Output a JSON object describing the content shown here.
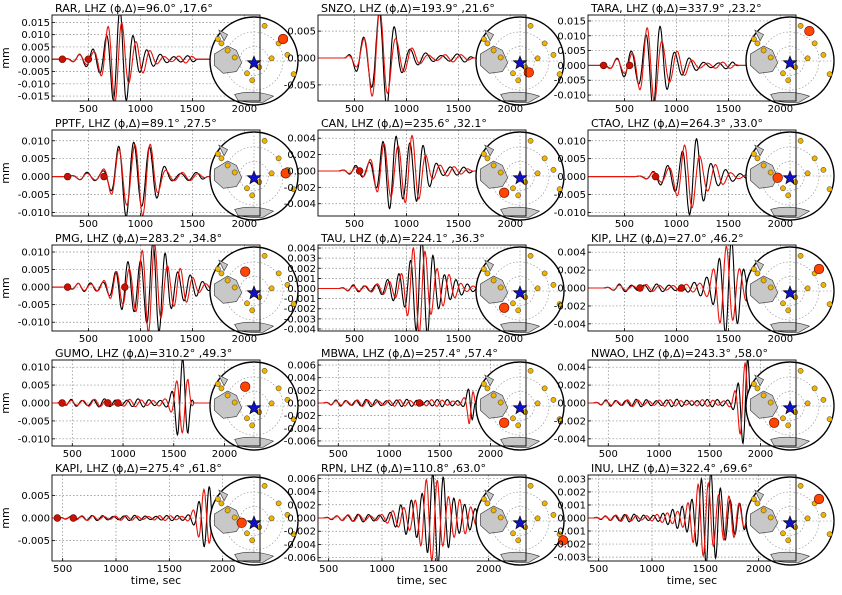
{
  "figure": {
    "ylabel": "mm",
    "xlabel": "time, sec"
  },
  "colors": {
    "observed": "#000000",
    "synthetic": "#e8140c",
    "map_land": "#c8c8c8",
    "station_dot": "#f0b400",
    "highlight_station": "#ff4500",
    "epicenter_star": "#1010c8",
    "marker": "#cc1100"
  },
  "chart_data": [
    {
      "type": "line",
      "title": "RAR, LHZ (ϕ,Δ)=96.0° ,17.6°",
      "xlim": [
        150,
        2150
      ],
      "ylim": [
        -0.017,
        0.018
      ],
      "xticks": [
        "500",
        "1000",
        "1500",
        "2000"
      ],
      "xtick_values": [
        500,
        1000,
        1500,
        2000
      ],
      "yticks": [
        "0.015",
        "0.010",
        "0.005",
        "0.000",
        "-0.005",
        "-0.010",
        "-0.015"
      ],
      "ytick_values": [
        0.015,
        0.01,
        0.005,
        0.0,
        -0.005,
        -0.01,
        -0.015
      ],
      "markers_x": [
        250,
        500
      ],
      "window": [
        250,
        1550
      ],
      "peak": 0.0165,
      "center": 800,
      "width": 200,
      "period": 130,
      "mismatch": 0.6,
      "map_highlight": "upper-right"
    },
    {
      "type": "line",
      "title": "SNZO, LHZ (ϕ,Δ)=193.9° ,21.6°",
      "xlim": [
        150,
        2150
      ],
      "ylim": [
        -0.008,
        0.008
      ],
      "xticks": [
        "500",
        "1000",
        "1500",
        "2000"
      ],
      "xtick_values": [
        500,
        1000,
        1500,
        2000
      ],
      "yticks": [
        "0.005",
        "0.000",
        "-0.005"
      ],
      "ytick_values": [
        0.005,
        0.0,
        -0.005
      ],
      "markers_x": [],
      "window": [
        400,
        1650
      ],
      "peak": 0.0078,
      "center": 750,
      "width": 220,
      "period": 150,
      "mismatch": 0.5,
      "map_highlight": "lower-center"
    },
    {
      "type": "line",
      "title": "TARA, LHZ (ϕ,Δ)=337.9° ,23.2°",
      "xlim": [
        150,
        2150
      ],
      "ylim": [
        -0.012,
        0.017
      ],
      "xticks": [
        "500",
        "1000",
        "1500",
        "2000"
      ],
      "xtick_values": [
        500,
        1000,
        1500,
        2000
      ],
      "yticks": [
        "0.015",
        "0.010",
        "0.005",
        "0.000",
        "-0.005",
        "-0.010"
      ],
      "ytick_values": [
        0.015,
        0.01,
        0.005,
        0.0,
        -0.005,
        -0.01
      ],
      "markers_x": [
        300,
        550
      ],
      "window": [
        250,
        1600
      ],
      "peak": 0.0118,
      "center": 780,
      "width": 230,
      "period": 140,
      "mismatch": 0.5,
      "map_highlight": "upper-center"
    },
    {
      "type": "line",
      "title": "PPTF, LHZ (ϕ,Δ)=89.1° ,27.5°",
      "xlim": [
        150,
        2150
      ],
      "ylim": [
        -0.011,
        0.013
      ],
      "xticks": [
        "500",
        "1000",
        "1500",
        "2000"
      ],
      "xtick_values": [
        500,
        1000,
        1500,
        2000
      ],
      "yticks": [
        "0.010",
        "0.005",
        "0.000",
        "-0.005",
        "-0.010"
      ],
      "ytick_values": [
        0.01,
        0.005,
        0.0,
        -0.005,
        -0.01
      ],
      "markers_x": [
        300,
        650
      ],
      "window": [
        300,
        1650
      ],
      "peak": 0.0115,
      "center": 950,
      "width": 210,
      "period": 150,
      "mismatch": 0.2,
      "map_highlight": "right"
    },
    {
      "type": "line",
      "title": "CAN, LHZ (ϕ,Δ)=235.6° ,32.1°",
      "xlim": [
        150,
        2150
      ],
      "ylim": [
        -0.0055,
        0.005
      ],
      "xticks": [
        "500",
        "1000",
        "1500",
        "2000"
      ],
      "xtick_values": [
        500,
        1000,
        1500,
        2000
      ],
      "yticks": [
        "0.004",
        "0.002",
        "0.000",
        "-0.002",
        "-0.004"
      ],
      "ytick_values": [
        0.004,
        0.002,
        0.0,
        -0.002,
        -0.004
      ],
      "markers_x": [
        550
      ],
      "window": [
        350,
        1650
      ],
      "peak": 0.0045,
      "center": 950,
      "width": 260,
      "period": 130,
      "mismatch": 0.5,
      "map_highlight": "lower-left"
    },
    {
      "type": "line",
      "title": "CTAO, LHZ (ϕ,Δ)=264.3° ,33.0°",
      "xlim": [
        150,
        2150
      ],
      "ylim": [
        -0.011,
        0.013
      ],
      "xticks": [
        "500",
        "1000",
        "1500",
        "2000"
      ],
      "xtick_values": [
        500,
        1000,
        1500,
        2000
      ],
      "yticks": [
        "0.010",
        "0.005",
        "0.000",
        "-0.005",
        "-0.010"
      ],
      "ytick_values": [
        0.01,
        0.005,
        0.0,
        -0.005,
        -0.01
      ],
      "markers_x": [
        800
      ],
      "window": [
        600,
        1850
      ],
      "peak": 0.009,
      "center": 1150,
      "width": 220,
      "period": 140,
      "mismatch": 0.9,
      "map_highlight": "left"
    },
    {
      "type": "line",
      "title": "PMG, LHZ (ϕ,Δ)=283.2° ,34.8°",
      "xlim": [
        150,
        2150
      ],
      "ylim": [
        -0.0125,
        0.012
      ],
      "xticks": [
        "500",
        "1000",
        "1500",
        "2000"
      ],
      "xtick_values": [
        500,
        1000,
        1500,
        2000
      ],
      "yticks": [
        "0.010",
        "0.005",
        "0.000",
        "-0.005",
        "-0.010"
      ],
      "ytick_values": [
        0.01,
        0.005,
        0.0,
        -0.005,
        -0.01
      ],
      "markers_x": [
        300,
        850
      ],
      "window": [
        250,
        1850
      ],
      "peak": 0.011,
      "center": 1100,
      "width": 300,
      "period": 120,
      "mismatch": 0.3,
      "map_highlight": "upper-left"
    },
    {
      "type": "line",
      "title": "TAU, LHZ (ϕ,Δ)=224.1° ,36.3°",
      "xlim": [
        150,
        2150
      ],
      "ylim": [
        -0.0042,
        0.0043
      ],
      "xticks": [
        "500",
        "1000",
        "1500",
        "2000"
      ],
      "xtick_values": [
        500,
        1000,
        1500,
        2000
      ],
      "yticks": [
        "0.004",
        "0.003",
        "0.002",
        "0.001",
        "0.000",
        "-0.001",
        "-0.002",
        "-0.003",
        "-0.004"
      ],
      "ytick_values": [
        0.004,
        0.003,
        0.002,
        0.001,
        0.0,
        -0.001,
        -0.002,
        -0.003,
        -0.004
      ],
      "markers_x": [],
      "window": [
        350,
        1800
      ],
      "peak": 0.0041,
      "center": 1150,
      "width": 220,
      "period": 110,
      "mismatch": 0.6,
      "map_highlight": "lower-left"
    },
    {
      "type": "line",
      "title": "KIP, LHZ (ϕ,Δ)=27.0° ,46.2°",
      "xlim": [
        150,
        2150
      ],
      "ylim": [
        -0.0048,
        0.0048
      ],
      "xticks": [
        "500",
        "1000",
        "1500",
        "2000"
      ],
      "xtick_values": [
        500,
        1000,
        1500,
        2000
      ],
      "yticks": [
        "0.004",
        "0.002",
        "0.000",
        "-0.002",
        "-0.004"
      ],
      "ytick_values": [
        0.004,
        0.002,
        0.0,
        -0.002,
        -0.004
      ],
      "markers_x": [
        650,
        1050
      ],
      "window": [
        300,
        1850
      ],
      "peak": 0.0045,
      "center": 1500,
      "width": 180,
      "period": 120,
      "mismatch": 0.9,
      "map_highlight": "upper-right"
    },
    {
      "type": "line",
      "title": "GUMO, LHZ (ϕ,Δ)=310.2° ,49.3°",
      "xlim": [
        300,
        2350
      ],
      "ylim": [
        -0.012,
        0.012
      ],
      "xticks": [
        "500",
        "1000",
        "1500",
        "2000"
      ],
      "xtick_values": [
        500,
        1000,
        1500,
        2000
      ],
      "yticks": [
        "0.010",
        "0.005",
        "0.000",
        "-0.005",
        "-0.010"
      ],
      "ytick_values": [
        0.01,
        0.005,
        0.0,
        -0.005,
        -0.01
      ],
      "markers_x": [
        400,
        850,
        950
      ],
      "window": [
        350,
        1700
      ],
      "peak": 0.0115,
      "center": 1600,
      "width": 90,
      "period": 110,
      "mismatch": 0.6,
      "map_highlight": "upper-left"
    },
    {
      "type": "line",
      "title": "MBWA, LHZ (ϕ,Δ)=257.4° ,57.4°",
      "xlim": [
        300,
        2350
      ],
      "ylim": [
        -0.0068,
        0.0068
      ],
      "xticks": [
        "500",
        "1000",
        "1500",
        "2000"
      ],
      "xtick_values": [
        500,
        1000,
        1500,
        2000
      ],
      "yticks": [
        "0.006",
        "0.004",
        "0.002",
        "0.000",
        "-0.002",
        "-0.004",
        "-0.006"
      ],
      "ytick_values": [
        0.006,
        0.004,
        0.002,
        0.0,
        -0.002,
        -0.004,
        -0.006
      ],
      "markers_x": [
        1300
      ],
      "window": [
        350,
        1850
      ],
      "peak": 0.0058,
      "center": 1850,
      "width": 70,
      "period": 100,
      "mismatch": 0.6,
      "map_highlight": "lower-left"
    },
    {
      "type": "line",
      "title": "NWAO, LHZ (ϕ,Δ)=243.3° ,58.0°",
      "xlim": [
        300,
        2350
      ],
      "ylim": [
        -0.0048,
        0.0048
      ],
      "xticks": [
        "500",
        "1000",
        "1500",
        "2000"
      ],
      "xtick_values": [
        500,
        1000,
        1500,
        2000
      ],
      "yticks": [
        "0.004",
        "0.002",
        "0.000",
        "-0.002",
        "-0.004"
      ],
      "ytick_values": [
        0.004,
        0.002,
        0.0,
        -0.002,
        -0.004
      ],
      "markers_x": [],
      "window": [
        350,
        1950
      ],
      "peak": 0.0042,
      "center": 1850,
      "width": 90,
      "period": 100,
      "mismatch": 0.7,
      "map_highlight": "lower-left"
    },
    {
      "type": "line",
      "title": "KAPI, LHZ (ϕ,Δ)=275.4° ,61.8°",
      "xlim": [
        400,
        2350
      ],
      "ylim": [
        -0.0095,
        0.0095
      ],
      "xticks": [
        "500",
        "1000",
        "1500",
        "2000"
      ],
      "xtick_values": [
        500,
        1000,
        1500,
        2000
      ],
      "yticks": [
        "0.005",
        "0.000",
        "-0.005"
      ],
      "ytick_values": [
        0.005,
        0.0,
        -0.005
      ],
      "markers_x": [
        450,
        600
      ],
      "window": [
        450,
        1950
      ],
      "peak": 0.0058,
      "center": 1850,
      "width": 110,
      "period": 100,
      "mismatch": 0.5,
      "map_highlight": "left"
    },
    {
      "type": "line",
      "title": "RPN, LHZ (ϕ,Δ)=110.8° ,63.0°",
      "xlim": [
        400,
        2350
      ],
      "ylim": [
        -0.0065,
        0.0065
      ],
      "xticks": [
        "500",
        "1000",
        "1500",
        "2000"
      ],
      "xtick_values": [
        500,
        1000,
        1500,
        2000
      ],
      "yticks": [
        "0.006",
        "0.004",
        "0.002",
        "0.000",
        "-0.002",
        "-0.004",
        "-0.006"
      ],
      "ytick_values": [
        0.006,
        0.004,
        0.002,
        0.0,
        -0.002,
        -0.004,
        -0.006
      ],
      "markers_x": [],
      "window": [
        450,
        2000
      ],
      "peak": 0.0058,
      "center": 1500,
      "width": 260,
      "period": 100,
      "mismatch": 0.6,
      "map_highlight": "lower-right"
    },
    {
      "type": "line",
      "title": "INU, LHZ (ϕ,Δ)=322.4° ,69.6°",
      "xlim": [
        400,
        2350
      ],
      "ylim": [
        -0.0033,
        0.0033
      ],
      "xticks": [
        "500",
        "1000",
        "1500",
        "2000"
      ],
      "xtick_values": [
        500,
        1000,
        1500,
        2000
      ],
      "yticks": [
        "0.003",
        "0.002",
        "0.001",
        "0.000",
        "-0.001",
        "-0.002",
        "-0.003"
      ],
      "ytick_values": [
        0.003,
        0.002,
        0.001,
        0.0,
        -0.001,
        -0.002,
        -0.003
      ],
      "markers_x": [],
      "window": [
        450,
        2000
      ],
      "peak": 0.003,
      "center": 1550,
      "width": 240,
      "period": 90,
      "mismatch": 0.9,
      "map_highlight": "upper-right"
    }
  ]
}
